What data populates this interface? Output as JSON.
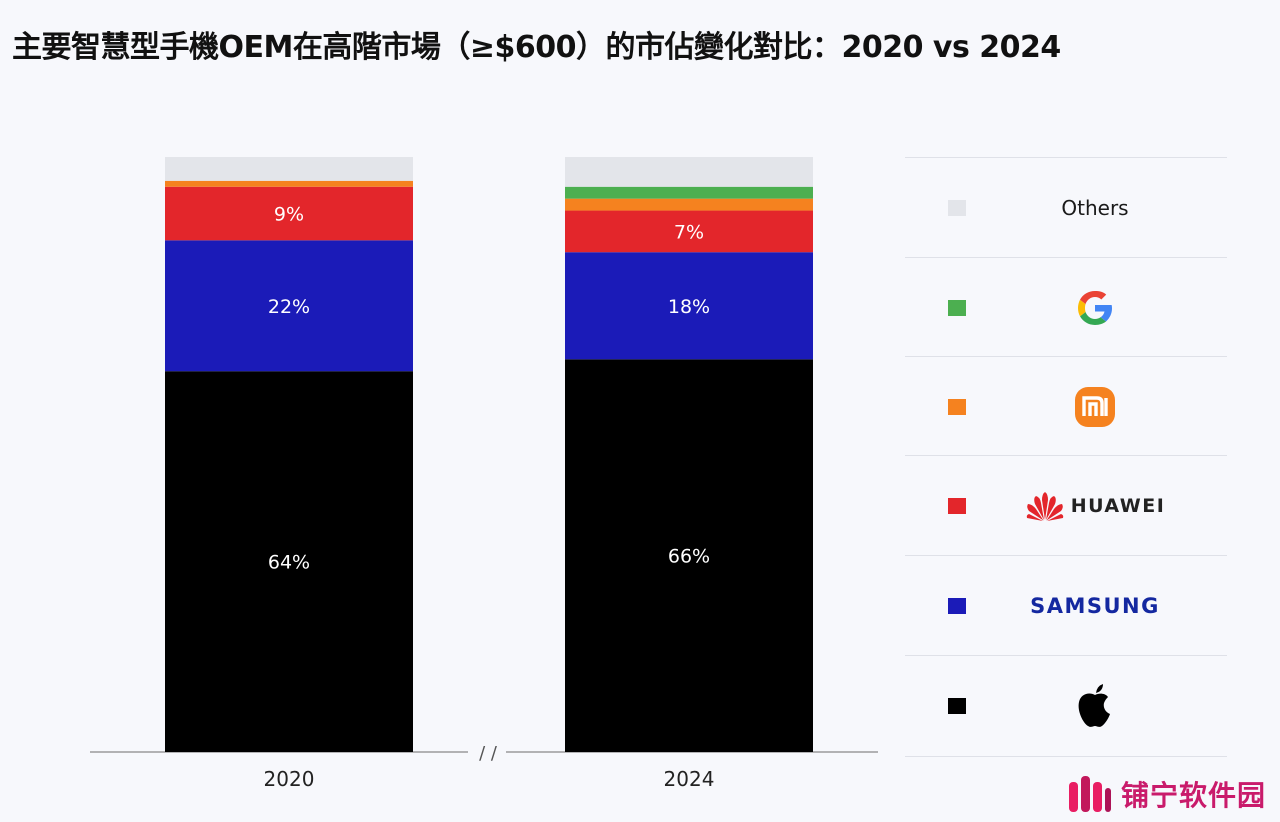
{
  "title": "主要智慧型手機OEM在高階市場（≥$600）的市佔變化對比：2020 vs 2024",
  "chart_data": {
    "type": "bar",
    "stacked": true,
    "categories": [
      "2020",
      "2024"
    ],
    "series": [
      {
        "name": "Apple",
        "color": "#000000",
        "values": [
          64,
          66
        ],
        "labels": [
          "64%",
          "66%"
        ]
      },
      {
        "name": "SAMSUNG",
        "color": "#1b1bb8",
        "values": [
          22,
          18
        ],
        "labels": [
          "22%",
          "18%"
        ]
      },
      {
        "name": "HUAWEI",
        "color": "#e3262b",
        "values": [
          9,
          7
        ],
        "labels": [
          "9%",
          "7%"
        ]
      },
      {
        "name": "Xiaomi",
        "color": "#f5821f",
        "values": [
          1,
          2
        ],
        "labels": [
          "",
          ""
        ]
      },
      {
        "name": "Google",
        "color": "#4caf50",
        "values": [
          0,
          2
        ],
        "labels": [
          "",
          ""
        ]
      },
      {
        "name": "Others",
        "color": "#e3e5ea",
        "values": [
          4,
          5
        ],
        "labels": [
          "",
          ""
        ]
      }
    ],
    "ylim": [
      0,
      100
    ],
    "axis_break_marker": "/ /",
    "legend_position": "right"
  },
  "legend": {
    "others_label": "Others",
    "huawei_label": "HUAWEI",
    "samsung_label": "SAMSUNG"
  },
  "watermark": {
    "text": "铺宁软件园"
  }
}
